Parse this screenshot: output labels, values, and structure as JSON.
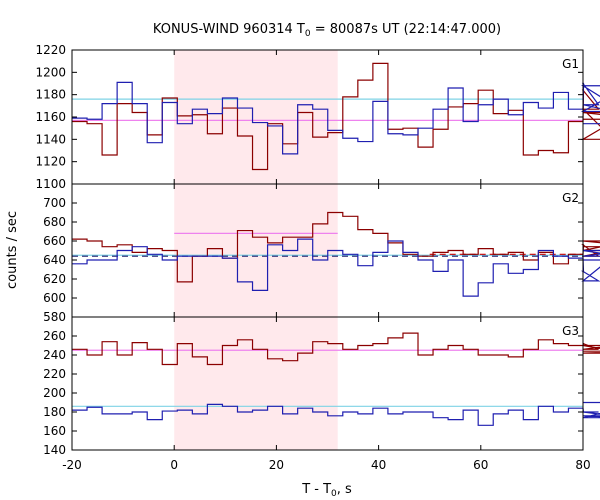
{
  "title": "KONUS-WIND 960314 T",
  "title_sub": "0",
  "title_rest": " = 80087s UT (22:14:47.000)",
  "xlabel": "T - T",
  "xlabel_sub": "0",
  "xlabel_rest": ", s",
  "ylabel": "counts / sec",
  "colors": {
    "red": "#8b0000",
    "blue": "#1f1fb0",
    "pink": "#ee82ee",
    "cyan": "#7fd3e6",
    "shade": "#ffe9ec",
    "dash": "#1a1a6a",
    "dash2": "#cc0000"
  },
  "chart_data": {
    "type": "line",
    "shared_x": {
      "xlim": [
        -20,
        80
      ],
      "ticks": [
        -20,
        0,
        20,
        40,
        60,
        80
      ],
      "tick_labels": [
        "-20",
        "0",
        "20",
        "40",
        "60",
        "80"
      ],
      "bin_width": 2.944,
      "shaded_interval": [
        0,
        32
      ]
    },
    "panels": [
      {
        "name": "G1",
        "ylim": [
          1100,
          1220
        ],
        "yticks": [
          1100,
          1120,
          1140,
          1160,
          1180,
          1200,
          1220
        ],
        "background_levels": [
          {
            "color": "cyan",
            "value": 1176
          },
          {
            "color": "pink",
            "value": 1157
          }
        ],
        "series": [
          {
            "color": "red",
            "values": [
              1156,
              1154,
              1126,
              1172,
              1164,
              1144,
              1177,
              1161,
              1162,
              1145,
              1168,
              1143,
              1113,
              1154,
              1136,
              1164,
              1142,
              1146,
              1178,
              1193,
              1208,
              1149,
              1150,
              1133,
              1149,
              1169,
              1172,
              1184,
              1163,
              1166,
              1126,
              1130,
              1128,
              1156,
              1184,
              1167,
              1140,
              1164,
              1158
            ]
          },
          {
            "color": "blue",
            "values": [
              1159,
              1158,
              1172,
              1191,
              1172,
              1137,
              1173,
              1154,
              1167,
              1163,
              1177,
              1168,
              1155,
              1152,
              1127,
              1171,
              1167,
              1148,
              1141,
              1138,
              1174,
              1145,
              1144,
              1150,
              1167,
              1186,
              1156,
              1171,
              1176,
              1162,
              1173,
              1168,
              1182,
              1167,
              1190,
              1171,
              1165,
              1188,
              1154
            ]
          }
        ]
      },
      {
        "name": "G2",
        "ylim": [
          580,
          720
        ],
        "yticks": [
          580,
          600,
          620,
          640,
          660,
          680,
          700
        ],
        "background_levels": [
          {
            "color": "cyan",
            "value": 645
          },
          {
            "color": "pink",
            "value": 668,
            "x_range": [
              0,
              32
            ]
          }
        ],
        "dashed_fit": [
          {
            "color": "dash",
            "value": 644
          },
          {
            "color": "dash2",
            "value": 646,
            "x_range": [
              50,
              80
            ]
          }
        ],
        "series": [
          {
            "color": "red",
            "values": [
              662,
              660,
              654,
              656,
              648,
              652,
              650,
              617,
              644,
              652,
              642,
              671,
              664,
              658,
              664,
              664,
              678,
              690,
              686,
              672,
              668,
              658,
              646,
              644,
              648,
              650,
              646,
              652,
              646,
              648,
              640,
              648,
              636,
              646,
              656,
              644,
              650,
              660,
              654
            ]
          },
          {
            "color": "blue",
            "values": [
              636,
              640,
              640,
              650,
              654,
              646,
              640,
              644,
              644,
              644,
              642,
              617,
              608,
              656,
              650,
              662,
              640,
              650,
              646,
              634,
              648,
              660,
              648,
              640,
              628,
              640,
              602,
              616,
              636,
              626,
              630,
              650,
              644,
              642,
              628,
              618,
              644,
              650,
              640
            ]
          }
        ]
      },
      {
        "name": "G3",
        "ylim": [
          140,
          280
        ],
        "yticks": [
          140,
          160,
          180,
          200,
          220,
          240,
          260
        ],
        "background_levels": [
          {
            "color": "pink",
            "value": 245
          },
          {
            "color": "cyan",
            "value": 186
          }
        ],
        "series": [
          {
            "color": "red",
            "values": [
              246,
              240,
              254,
              240,
              253,
              246,
              230,
              252,
              238,
              230,
              250,
              256,
              246,
              236,
              234,
              242,
              254,
              252,
              246,
              250,
              252,
              258,
              263,
              240,
              246,
              250,
              246,
              240,
              240,
              238,
              246,
              256,
              252,
              250,
              252,
              246,
              250,
              242,
              244
            ]
          },
          {
            "color": "blue",
            "values": [
              182,
              185,
              178,
              178,
              180,
              172,
              181,
              182,
              178,
              188,
              186,
              180,
              182,
              186,
              178,
              184,
              180,
              176,
              180,
              178,
              184,
              178,
              180,
              180,
              174,
              172,
              182,
              166,
              178,
              182,
              172,
              186,
              180,
              184,
              180,
              180,
              176,
              174,
              190
            ]
          }
        ]
      }
    ]
  }
}
